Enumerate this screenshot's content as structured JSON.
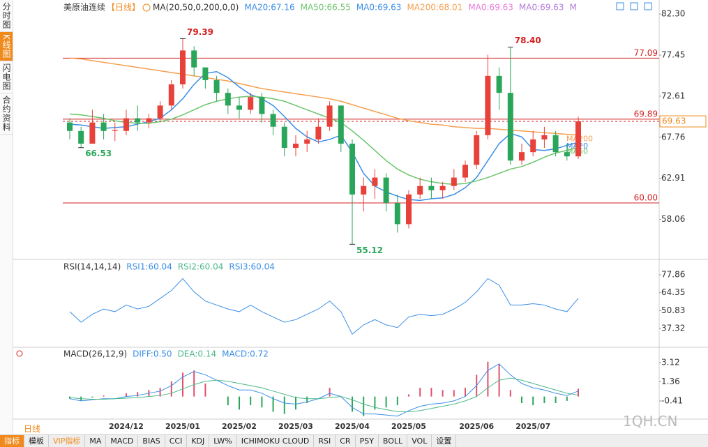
{
  "chart_data": [
    {
      "type": "candlestick",
      "title": "美原油连续",
      "period": "【日线】",
      "legend": [
        {
          "name": "MA(20,50,0,200,0,0)",
          "color": "#333333"
        },
        {
          "name": "MA20:67.16",
          "color": "#3a8ee6"
        },
        {
          "name": "MA50:66.55",
          "color": "#6cc46c"
        },
        {
          "name": "MA0:69.63",
          "color": "#3a8ee6"
        },
        {
          "name": "MA200:68.01",
          "color": "#f5a050"
        },
        {
          "name": "MA0:69.63",
          "color": "#e87ad8"
        },
        {
          "name": "MA0:69.63",
          "color": "#b27ad8"
        },
        {
          "name": "M",
          "color": "#b27ad8"
        }
      ],
      "up_color": "#e8413a",
      "down_color": "#2aa65a",
      "categories": [
        null,
        null,
        null,
        null,
        null,
        "2024/12",
        null,
        null,
        null,
        null,
        "2025/01",
        null,
        null,
        null,
        null,
        "2025/02",
        null,
        null,
        null,
        null,
        "2025/03",
        null,
        null,
        null,
        null,
        "2025/04",
        null,
        null,
        null,
        null,
        "2025/05",
        null,
        null,
        null,
        null,
        null,
        "2025/06",
        null,
        null,
        null,
        null,
        "2025/07",
        null,
        null,
        null,
        null
      ],
      "candles": [
        {
          "open": 69.5,
          "high": 70,
          "low": 67.5,
          "close": 68.5
        },
        {
          "open": 68.5,
          "high": 69,
          "low": 66.53,
          "close": 67
        },
        {
          "open": 67,
          "high": 71,
          "low": 67,
          "close": 69.5
        },
        {
          "open": 69.5,
          "high": 70.5,
          "low": 67.5,
          "close": 68.5
        },
        {
          "open": 68.5,
          "high": 69.5,
          "low": 67.3,
          "close": 68.6
        },
        {
          "open": 68.5,
          "high": 71,
          "low": 68,
          "close": 70
        },
        {
          "open": 70,
          "high": 71.5,
          "low": 68.5,
          "close": 69.5
        },
        {
          "open": 69.5,
          "high": 70.5,
          "low": 68.8,
          "close": 70
        },
        {
          "open": 70,
          "high": 72,
          "low": 69.5,
          "close": 71.5
        },
        {
          "open": 71.5,
          "high": 74.5,
          "low": 71,
          "close": 74
        },
        {
          "open": 74,
          "high": 79.39,
          "low": 73.5,
          "close": 78
        },
        {
          "open": 78,
          "high": 78.5,
          "low": 75,
          "close": 76
        },
        {
          "open": 76,
          "high": 76,
          "low": 73.5,
          "close": 74.5
        },
        {
          "open": 74.5,
          "high": 75,
          "low": 72,
          "close": 73
        },
        {
          "open": 73,
          "high": 73.5,
          "low": 70.5,
          "close": 71.5
        },
        {
          "open": 71.5,
          "high": 72.5,
          "low": 70,
          "close": 71
        },
        {
          "open": 71,
          "high": 73,
          "low": 70.5,
          "close": 72.5
        },
        {
          "open": 72.5,
          "high": 73,
          "low": 69.5,
          "close": 70.5
        },
        {
          "open": 70.5,
          "high": 71,
          "low": 68,
          "close": 69
        },
        {
          "open": 69,
          "high": 69.5,
          "low": 65.5,
          "close": 66.5
        },
        {
          "open": 66.5,
          "high": 68,
          "low": 65.5,
          "close": 67
        },
        {
          "open": 67,
          "high": 68.5,
          "low": 66,
          "close": 67.5
        },
        {
          "open": 67.5,
          "high": 70,
          "low": 67,
          "close": 69
        },
        {
          "open": 69,
          "high": 72,
          "low": 68.5,
          "close": 71.5
        },
        {
          "open": 71.5,
          "high": 71.5,
          "low": 66,
          "close": 67
        },
        {
          "open": 67,
          "high": 67.5,
          "low": 55.12,
          "close": 61
        },
        {
          "open": 61,
          "high": 63,
          "low": 59,
          "close": 62
        },
        {
          "open": 62,
          "high": 64,
          "low": 60.5,
          "close": 63
        },
        {
          "open": 63,
          "high": 63.5,
          "low": 59,
          "close": 60
        },
        {
          "open": 60,
          "high": 61,
          "low": 56.5,
          "close": 57.5
        },
        {
          "open": 57.5,
          "high": 61.5,
          "low": 57,
          "close": 61
        },
        {
          "open": 61,
          "high": 63,
          "low": 60.5,
          "close": 62
        },
        {
          "open": 62,
          "high": 63,
          "low": 60.5,
          "close": 61.5
        },
        {
          "open": 61.5,
          "high": 62.5,
          "low": 60.5,
          "close": 62
        },
        {
          "open": 62,
          "high": 64,
          "low": 61.5,
          "close": 63
        },
        {
          "open": 63,
          "high": 65,
          "low": 62.5,
          "close": 64.5
        },
        {
          "open": 64.5,
          "high": 68.5,
          "low": 64,
          "close": 68
        },
        {
          "open": 68,
          "high": 77.5,
          "low": 67.5,
          "close": 75
        },
        {
          "open": 75,
          "high": 76,
          "low": 71,
          "close": 73
        },
        {
          "open": 73,
          "high": 78.4,
          "low": 64.5,
          "close": 65
        },
        {
          "open": 65,
          "high": 67,
          "low": 64.5,
          "close": 66
        },
        {
          "open": 66,
          "high": 68.5,
          "low": 65.5,
          "close": 67.5
        },
        {
          "open": 67.5,
          "high": 69,
          "low": 66.5,
          "close": 68
        },
        {
          "open": 68,
          "high": 68.5,
          "low": 65.5,
          "close": 66
        },
        {
          "open": 66,
          "high": 67,
          "low": 65,
          "close": 65.5
        },
        {
          "open": 65.5,
          "high": 70.2,
          "low": 65.2,
          "close": 69.63
        }
      ],
      "series": [
        {
          "name": "MA200",
          "color": "#f5a050",
          "values": [
            77.1,
            77.0,
            76.8,
            76.6,
            76.4,
            76.2,
            76.0,
            75.8,
            75.6,
            75.4,
            75.2,
            75.0,
            74.8,
            74.6,
            74.4,
            74.1,
            73.8,
            73.5,
            73.3,
            73.1,
            72.9,
            72.7,
            72.5,
            72.3,
            72.0,
            71.6,
            71.2,
            70.8,
            70.4,
            70.0,
            69.7,
            69.5,
            69.3,
            69.2,
            69.0,
            68.9,
            68.8,
            68.8,
            68.7,
            68.6,
            68.5,
            68.4,
            68.3,
            68.2,
            68.1,
            68.01
          ]
        },
        {
          "name": "MA20",
          "color": "#3a8ee6",
          "values": [
            69.3,
            69.2,
            69.0,
            68.8,
            68.9,
            69.0,
            69.3,
            69.6,
            70.0,
            71.0,
            72.3,
            74.0,
            75.3,
            75.5,
            74.8,
            73.7,
            72.8,
            72.3,
            71.5,
            70.2,
            68.8,
            67.8,
            67.2,
            67.5,
            68.0,
            66.0,
            63.5,
            62.0,
            61.3,
            60.8,
            60.4,
            60.3,
            60.5,
            60.6,
            61.0,
            61.8,
            63.0,
            65.0,
            67.0,
            68.2,
            67.8,
            66.3,
            66.2,
            66.4,
            66.8,
            67.16
          ]
        },
        {
          "name": "MA50",
          "color": "#6cc46c",
          "values": [
            70.5,
            70.4,
            70.2,
            70.0,
            69.7,
            69.5,
            69.4,
            69.4,
            69.6,
            69.9,
            70.4,
            71.0,
            71.6,
            72.0,
            72.3,
            72.5,
            72.6,
            72.5,
            72.3,
            72.0,
            71.5,
            71.0,
            70.5,
            70.0,
            69.5,
            68.5,
            67.4,
            66.2,
            65.0,
            64.0,
            63.3,
            62.8,
            62.5,
            62.3,
            62.2,
            62.3,
            62.6,
            63.0,
            63.5,
            64.0,
            64.3,
            64.8,
            65.4,
            65.9,
            66.2,
            66.55
          ]
        }
      ],
      "annotations": [
        {
          "value": 79.39,
          "label": "79.39"
        },
        {
          "value": 66.53,
          "label": "66.53"
        },
        {
          "value": 78.4,
          "label": "78.40"
        },
        {
          "value": 55.12,
          "label": "55.12"
        }
      ],
      "hlines": [
        {
          "value": 77.09,
          "label": "77.09"
        },
        {
          "value": 69.89,
          "label": "69.89"
        },
        {
          "value": 60,
          "label": "60.00"
        }
      ],
      "hline_color": "#d42020",
      "last_price": {
        "value": 69.63,
        "label": "69.63"
      },
      "last_price_color": "#f08a1c",
      "ylim": [
        53.5,
        83.3
      ],
      "yticks": [
        {
          "value": 82.3,
          "label": "82.30"
        },
        77.45,
        72.61,
        67.76,
        62.91,
        58.06
      ]
    },
    {
      "type": "line",
      "title": "RSI(14,14,14)",
      "legend": [
        {
          "name": "RSI1:60.04",
          "color": "#3a8ee6"
        },
        {
          "name": "RSI2:60.04",
          "color": "#4cb88a"
        },
        {
          "name": "RSI3:60.04",
          "color": "#3a8ee6"
        }
      ],
      "series": [
        {
          "color": "#3a8ee6",
          "values": [
            50,
            42,
            48,
            52,
            50,
            55,
            52,
            54,
            60,
            66,
            75,
            65,
            58,
            55,
            52,
            50,
            55,
            50,
            46,
            42,
            44,
            48,
            52,
            58,
            50,
            33,
            40,
            44,
            40,
            38,
            46,
            48,
            47,
            48,
            52,
            57,
            65,
            75,
            70,
            55,
            55,
            56,
            55,
            52,
            50,
            60
          ]
        }
      ],
      "ylim": [
        23.1,
        86.3
      ],
      "yticks": [
        77.86,
        64.35,
        50.83,
        37.32
      ]
    },
    {
      "type": "macd",
      "title": "MACD(26,12,9)",
      "legend": [
        {
          "name": "DIFF:0.50",
          "color": "#3a8ee6"
        },
        {
          "name": "DEA:0.14",
          "color": "#4cb88a"
        },
        {
          "name": "MACD:0.72",
          "color": "#3a8ee6"
        }
      ],
      "diff": {
        "color": "#3a8ee6",
        "values": [
          -0.2,
          -0.4,
          -0.3,
          -0.2,
          -0.2,
          0,
          0.1,
          0.3,
          0.5,
          1,
          1.8,
          2.3,
          2.0,
          1.5,
          1.0,
          0.6,
          0.6,
          0.3,
          -0.2,
          -0.6,
          -0.7,
          -0.5,
          -0.2,
          0.3,
          0,
          -1.0,
          -1.6,
          -1.6,
          -1.7,
          -1.8,
          -1.3,
          -0.9,
          -0.7,
          -0.6,
          -0.4,
          0,
          1,
          2.4,
          3.0,
          2,
          1.2,
          0.8,
          0.6,
          0.3,
          0.1,
          0.5
        ]
      },
      "dea": {
        "color": "#4cb88a",
        "values": [
          -0.1,
          -0.2,
          -0.25,
          -0.25,
          -0.2,
          -0.15,
          -0.1,
          0,
          0.1,
          0.3,
          0.7,
          1.1,
          1.4,
          1.5,
          1.4,
          1.2,
          1.0,
          0.8,
          0.5,
          0.2,
          -0.1,
          -0.2,
          -0.2,
          -0.1,
          0,
          -0.3,
          -0.7,
          -1.0,
          -1.2,
          -1.4,
          -1.4,
          -1.3,
          -1.1,
          -0.9,
          -0.7,
          -0.4,
          0,
          0.8,
          1.5,
          1.7,
          1.5,
          1.2,
          0.9,
          0.6,
          0.3,
          0.14
        ]
      },
      "histogram": {
        "up_color": "#e0506a",
        "down_color": "#2aa65a",
        "values": [
          -0.2,
          -0.4,
          -0.1,
          0.1,
          0,
          0.3,
          0.4,
          0.6,
          0.8,
          1.4,
          2.2,
          2.4,
          1.2,
          0,
          -0.8,
          -1.2,
          -0.8,
          -1.0,
          -1.4,
          -1.6,
          -1.2,
          -0.6,
          0,
          0.8,
          0,
          -1.4,
          -1.8,
          -1.2,
          -1.0,
          -0.8,
          0.2,
          0.8,
          0.8,
          0.6,
          0.6,
          0.8,
          2.0,
          3.2,
          3.0,
          0.6,
          -0.6,
          -0.8,
          -0.6,
          -0.6,
          -0.4,
          0.72
        ]
      },
      "ylim": [
        -2.14,
        4.4
      ],
      "yticks": [
        3.12,
        1.36,
        -0.41
      ]
    }
  ],
  "sidebar_tabs": [
    "分时图",
    "K线图",
    "闪电图",
    "合约资料"
  ],
  "period_tab": "日线",
  "toolbar": [
    "指标",
    "模板",
    "VIP指标",
    "MA",
    "MACD",
    "BIAS",
    "CCI",
    "KDJ",
    "LW%",
    "ICHIMOKU CLOUD",
    "RSI",
    "CR",
    "PSY",
    "BOLL",
    "VOL",
    "设置"
  ],
  "watermark": "1QH.CN"
}
